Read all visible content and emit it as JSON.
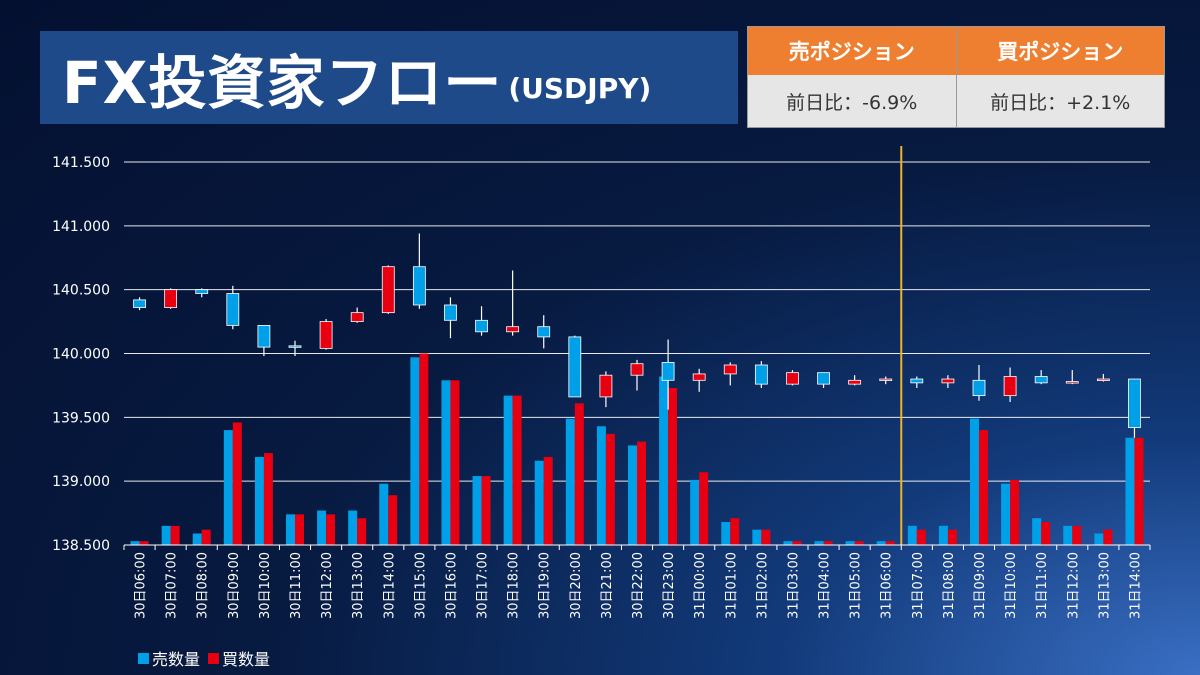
{
  "title": {
    "main": "FX投資家フロー",
    "sub": "(USDJPY)"
  },
  "positions": {
    "sell": {
      "label": "売ポジション",
      "value": "前日比：-6.9%"
    },
    "buy": {
      "label": "買ポジション",
      "value": "前日比：+2.1%"
    }
  },
  "colors": {
    "sell": "#00a0e9",
    "buy": "#e60012",
    "divider": "#f0b323",
    "grid": "#ffffff"
  },
  "chart_data": {
    "type": "candlestick+bar",
    "ylim": [
      138.5,
      141.5
    ],
    "y_ticks": [
      "141.500",
      "141.000",
      "140.500",
      "140.000",
      "139.500",
      "139.000",
      "138.500"
    ],
    "y_tick_values": [
      141.5,
      141.0,
      140.5,
      140.0,
      139.5,
      139.0,
      138.5
    ],
    "categories": [
      "30日06:00",
      "30日07:00",
      "30日08:00",
      "30日09:00",
      "30日10:00",
      "30日11:00",
      "30日12:00",
      "30日13:00",
      "30日14:00",
      "30日15:00",
      "30日16:00",
      "30日17:00",
      "30日18:00",
      "30日19:00",
      "30日20:00",
      "30日21:00",
      "30日22:00",
      "30日23:00",
      "31日00:00",
      "31日01:00",
      "31日02:00",
      "31日03:00",
      "31日04:00",
      "31日05:00",
      "31日06:00",
      "31日07:00",
      "31日08:00",
      "31日09:00",
      "31日10:00",
      "31日11:00",
      "31日12:00",
      "31日13:00",
      "31日14:00"
    ],
    "divider_after": "31日06:00",
    "candles": [
      {
        "o": 140.42,
        "c": 140.36,
        "h": 140.44,
        "l": 140.34
      },
      {
        "o": 140.36,
        "c": 140.5,
        "h": 140.51,
        "l": 140.35
      },
      {
        "o": 140.5,
        "c": 140.47,
        "h": 140.51,
        "l": 140.44
      },
      {
        "o": 140.47,
        "c": 140.22,
        "h": 140.53,
        "l": 140.19
      },
      {
        "o": 140.22,
        "c": 140.05,
        "h": 140.22,
        "l": 139.98
      },
      {
        "o": 140.06,
        "c": 140.05,
        "h": 140.1,
        "l": 139.98
      },
      {
        "o": 140.04,
        "c": 140.25,
        "h": 140.27,
        "l": 140.03
      },
      {
        "o": 140.25,
        "c": 140.32,
        "h": 140.36,
        "l": 140.24
      },
      {
        "o": 140.32,
        "c": 140.68,
        "h": 140.69,
        "l": 140.31
      },
      {
        "o": 140.68,
        "c": 140.38,
        "h": 140.94,
        "l": 140.35
      },
      {
        "o": 140.38,
        "c": 140.26,
        "h": 140.44,
        "l": 140.12
      },
      {
        "o": 140.26,
        "c": 140.17,
        "h": 140.37,
        "l": 140.14
      },
      {
        "o": 140.17,
        "c": 140.21,
        "h": 140.65,
        "l": 140.14
      },
      {
        "o": 140.21,
        "c": 140.13,
        "h": 140.3,
        "l": 140.04
      },
      {
        "o": 140.13,
        "c": 139.66,
        "h": 140.14,
        "l": 139.66
      },
      {
        "o": 139.66,
        "c": 139.83,
        "h": 139.86,
        "l": 139.58
      },
      {
        "o": 139.83,
        "c": 139.92,
        "h": 139.95,
        "l": 139.71
      },
      {
        "o": 139.93,
        "c": 139.79,
        "h": 140.11,
        "l": 139.56
      },
      {
        "o": 139.79,
        "c": 139.84,
        "h": 139.88,
        "l": 139.7
      },
      {
        "o": 139.84,
        "c": 139.91,
        "h": 139.93,
        "l": 139.75
      },
      {
        "o": 139.91,
        "c": 139.76,
        "h": 139.94,
        "l": 139.73
      },
      {
        "o": 139.76,
        "c": 139.85,
        "h": 139.87,
        "l": 139.75
      },
      {
        "o": 139.85,
        "c": 139.76,
        "h": 139.85,
        "l": 139.73
      },
      {
        "o": 139.76,
        "c": 139.79,
        "h": 139.83,
        "l": 139.75
      },
      {
        "o": 139.79,
        "c": 139.8,
        "h": 139.82,
        "l": 139.76
      },
      {
        "o": 139.8,
        "c": 139.77,
        "h": 139.82,
        "l": 139.73
      },
      {
        "o": 139.77,
        "c": 139.8,
        "h": 139.83,
        "l": 139.73
      },
      {
        "o": 139.79,
        "c": 139.67,
        "h": 139.91,
        "l": 139.63
      },
      {
        "o": 139.67,
        "c": 139.82,
        "h": 139.89,
        "l": 139.62
      },
      {
        "o": 139.82,
        "c": 139.77,
        "h": 139.87,
        "l": 139.76
      },
      {
        "o": 139.77,
        "c": 139.78,
        "h": 139.87,
        "l": 139.76
      },
      {
        "o": 139.79,
        "c": 139.8,
        "h": 139.84,
        "l": 139.78
      },
      {
        "o": 139.8,
        "c": 139.42,
        "h": 139.8,
        "l": 139.34
      }
    ],
    "volume_series": [
      {
        "name": "売数量",
        "values": [
          0.01,
          0.05,
          0.03,
          0.3,
          0.23,
          0.08,
          0.09,
          0.09,
          0.16,
          0.49,
          0.43,
          0.18,
          0.39,
          0.22,
          0.33,
          0.31,
          0.26,
          0.44,
          0.17,
          0.06,
          0.04,
          0.01,
          0.01,
          0.01,
          0.01,
          0.05,
          0.05,
          0.33,
          0.16,
          0.07,
          0.05,
          0.03,
          0.28
        ]
      },
      {
        "name": "買数量",
        "values": [
          0.01,
          0.05,
          0.04,
          0.32,
          0.24,
          0.08,
          0.08,
          0.07,
          0.13,
          0.5,
          0.43,
          0.18,
          0.39,
          0.23,
          0.37,
          0.29,
          0.27,
          0.41,
          0.19,
          0.07,
          0.04,
          0.01,
          0.01,
          0.01,
          0.01,
          0.04,
          0.04,
          0.3,
          0.17,
          0.06,
          0.05,
          0.04,
          0.28
        ]
      }
    ]
  }
}
